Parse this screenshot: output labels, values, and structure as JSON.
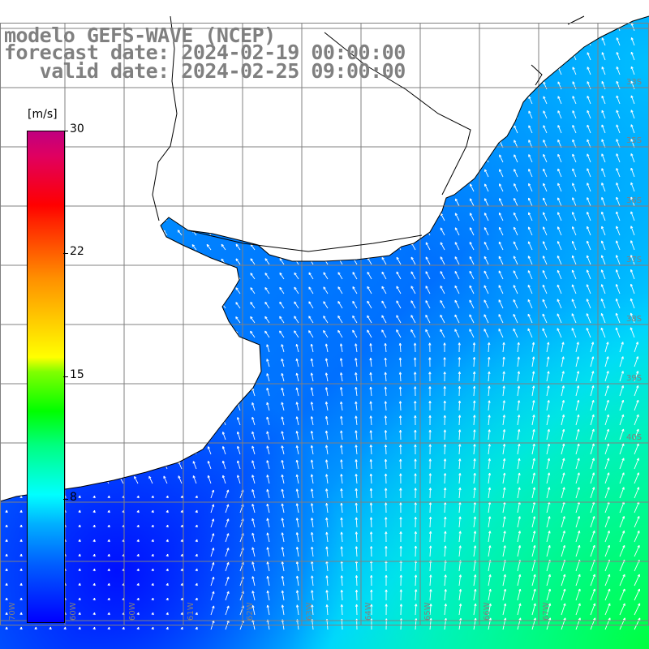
{
  "title": {
    "line1": "modelo GEFS-WAVE (NCEP)",
    "line2": "forecast date: 2024-02-19 00:00:00",
    "line3": "   valid date: 2024-02-25 09:00:00"
  },
  "colorbar": {
    "unit": "[m/s]",
    "ticks": [
      "30",
      "22",
      "15",
      "8"
    ],
    "tick_values": [
      30,
      22,
      15,
      8
    ],
    "min": 0,
    "max": 30
  },
  "lat_labels": [
    "33S",
    "35S",
    "36S",
    "37S",
    "38S",
    "39S",
    "40S"
  ],
  "lon_labels": [
    "70W",
    "60W",
    "60W",
    "61W",
    "62W",
    "63W",
    "64W",
    "65W",
    "66W",
    "67W"
  ],
  "colors": {
    "land": "#ffffff",
    "grid": "#808080",
    "coast": "#000000",
    "arrow": "#ffffff",
    "title": "#808080"
  }
}
